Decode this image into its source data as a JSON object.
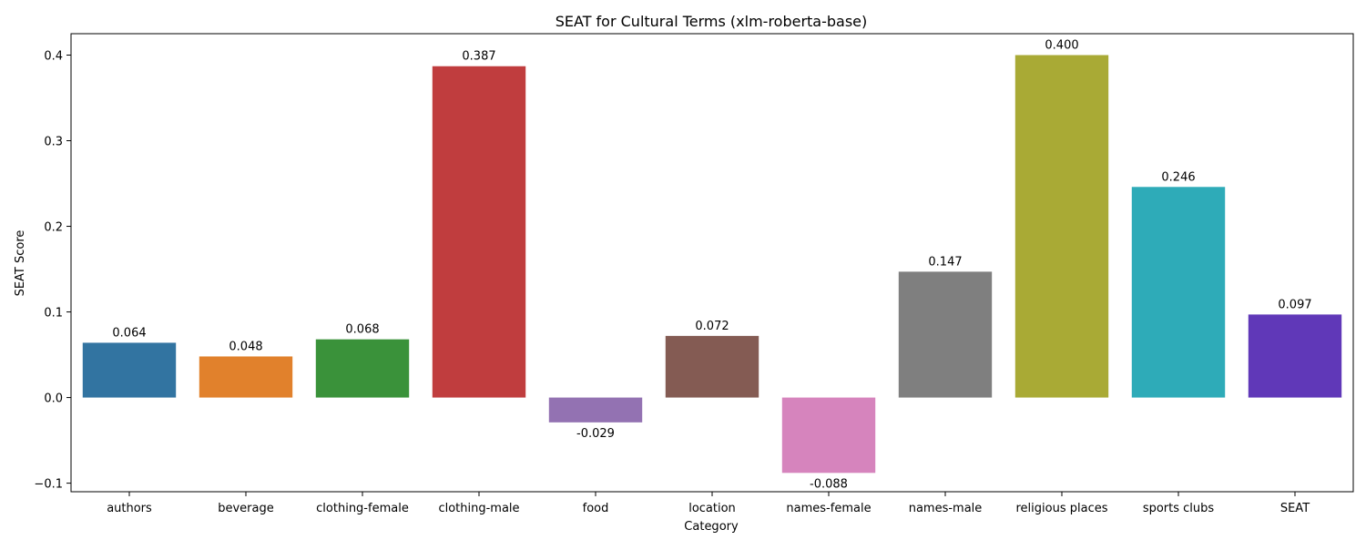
{
  "chart_data": {
    "type": "bar",
    "title": "SEAT for Cultural Terms (xlm-roberta-base)",
    "xlabel": "Category",
    "ylabel": "SEAT Score",
    "categories": [
      "authors",
      "beverage",
      "clothing-female",
      "clothing-male",
      "food",
      "location",
      "names-female",
      "names-male",
      "religious places",
      "sports clubs",
      "SEAT"
    ],
    "values": [
      0.064,
      0.048,
      0.068,
      0.387,
      -0.029,
      0.072,
      -0.088,
      0.147,
      0.4,
      0.246,
      0.097
    ],
    "value_labels": [
      "0.064",
      "0.048",
      "0.068",
      "0.387",
      "-0.029",
      "0.072",
      "-0.088",
      "0.147",
      "0.400",
      "0.246",
      "0.097"
    ],
    "colors": [
      "#3274a1",
      "#e1812c",
      "#3a923a",
      "#c03d3e",
      "#9372b2",
      "#845b53",
      "#d684bd",
      "#7f7f7f",
      "#a9aa35",
      "#2eabb8",
      "#6038b8"
    ],
    "ylim": [
      -0.11,
      0.425
    ],
    "yticks": [
      -0.1,
      0.0,
      0.1,
      0.2,
      0.3,
      0.4
    ],
    "ytick_labels": [
      "−0.1",
      "0.0",
      "0.1",
      "0.2",
      "0.3",
      "0.4"
    ],
    "grid": false,
    "legend": "none"
  }
}
